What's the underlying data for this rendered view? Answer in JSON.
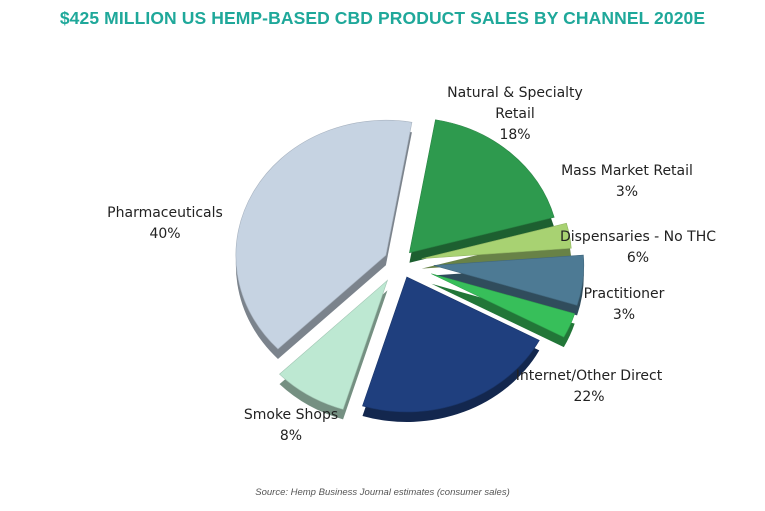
{
  "chart_data": {
    "type": "pie",
    "title": "$425 MILLION US HEMP-BASED CBD PRODUCT SALES BY CHANNEL 2020E",
    "slices": [
      {
        "label": "Natural & Specialty Retail",
        "value": 18,
        "value_label": "18%",
        "color": "#2e9a4e"
      },
      {
        "label": "Mass Market Retail",
        "value": 3,
        "value_label": "3%",
        "color": "#a8d272"
      },
      {
        "label": "Dispensaries - No THC",
        "value": 6,
        "value_label": "6%",
        "color": "#4d7a94"
      },
      {
        "label": "Practitioner",
        "value": 3,
        "value_label": "3%",
        "color": "#37bf5a"
      },
      {
        "label": "Internet/Other Direct",
        "value": 22,
        "value_label": "22%",
        "color": "#1f3f7e"
      },
      {
        "label": "Smoke Shops",
        "value": 8,
        "value_label": "8%",
        "color": "#bde8d2"
      },
      {
        "label": "Pharmaceuticals",
        "value": 40,
        "value_label": "40%",
        "color": "#c6d3e2"
      }
    ],
    "legend": "none",
    "style": "exploded-3d"
  },
  "source": "Source: Hemp Business Journal estimates (consumer sales)"
}
